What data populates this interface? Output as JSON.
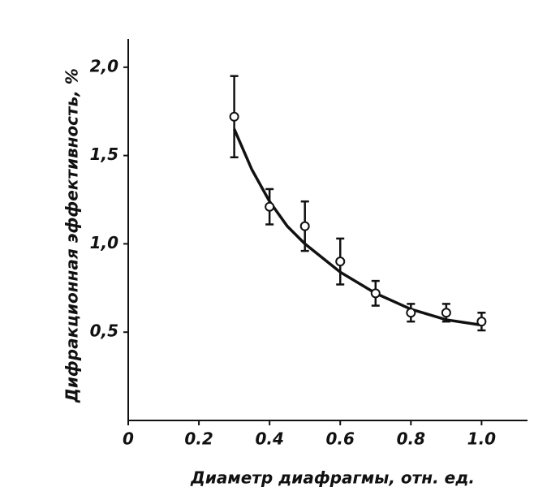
{
  "chart_data": {
    "type": "scatter",
    "x_label": "Диаметр диафрагмы, отн. ед.",
    "y_label": "Дифракционная эффективность, %",
    "x": [
      0.3,
      0.4,
      0.5,
      0.6,
      0.7,
      0.8,
      0.9,
      1.0
    ],
    "values": [
      1.72,
      1.21,
      1.1,
      0.9,
      0.72,
      0.61,
      0.61,
      0.56
    ],
    "errors": [
      0.23,
      0.1,
      0.14,
      0.13,
      0.07,
      0.05,
      0.05,
      0.05
    ],
    "fit": {
      "x": [
        0.3,
        0.35,
        0.4,
        0.45,
        0.5,
        0.6,
        0.7,
        0.8,
        0.9,
        1.0
      ],
      "values": [
        1.65,
        1.42,
        1.24,
        1.1,
        1.0,
        0.84,
        0.72,
        0.63,
        0.57,
        0.54
      ]
    },
    "color": "#111111",
    "xlim": [
      0,
      1.13
    ],
    "ylim": [
      0,
      2.16
    ],
    "xticks": [
      0,
      0.2,
      0.4,
      0.6,
      0.8,
      {
        "value": 1,
        "label": "1.0"
      }
    ],
    "yticks": [
      {
        "value": 0.5,
        "label": "0,5"
      },
      {
        "value": 1,
        "label": "1,0"
      },
      {
        "value": 1.5,
        "label": "1,5"
      },
      {
        "value": 2,
        "label": "2,0"
      }
    ]
  }
}
